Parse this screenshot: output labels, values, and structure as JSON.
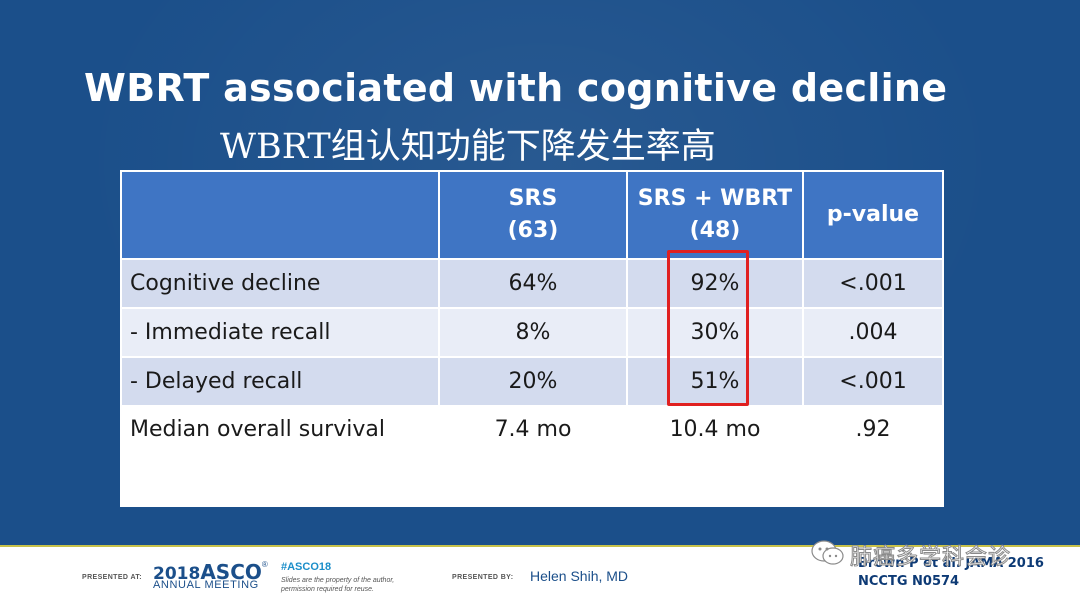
{
  "slide": {
    "title": "WBRT associated with cognitive decline",
    "subtitle": "WBRT组认知功能下降发生率高",
    "table": {
      "headers": [
        "",
        "SRS\n(63)",
        "SRS + WBRT\n(48)",
        "p-value"
      ],
      "rows": [
        {
          "label": "Cognitive decline",
          "srs": "64%",
          "srs_wbrt": "92%",
          "p": "<.001"
        },
        {
          "label": "- Immediate recall",
          "srs": "8%",
          "srs_wbrt": "30%",
          "p": ".004"
        },
        {
          "label": "- Delayed recall",
          "srs": "20%",
          "srs_wbrt": "51%",
          "p": "<.001"
        },
        {
          "label": "Median overall survival",
          "srs": "7.4 mo",
          "srs_wbrt": "10.4 mo",
          "p": ".92"
        }
      ]
    },
    "citation": {
      "line1": "Brown P et al. JAMA 2016",
      "line2": "NCCTG N0574"
    },
    "highlight_color": "#e02020",
    "background_color": "#1b4f8a"
  },
  "footer": {
    "presented_at_label": "PRESENTED AT:",
    "meeting_year": "2018",
    "meeting_brand": "ASCO",
    "meeting_name": "ANNUAL MEETING",
    "hashtag": "#ASCO18",
    "disclaimer": "Slides are the property of the author, permission required for reuse.",
    "presented_by_label": "PRESENTED BY:",
    "presenter": "Helen Shih, MD"
  },
  "watermark": {
    "icon": "wechat-icon",
    "text": "肺癌多学科会诊"
  }
}
